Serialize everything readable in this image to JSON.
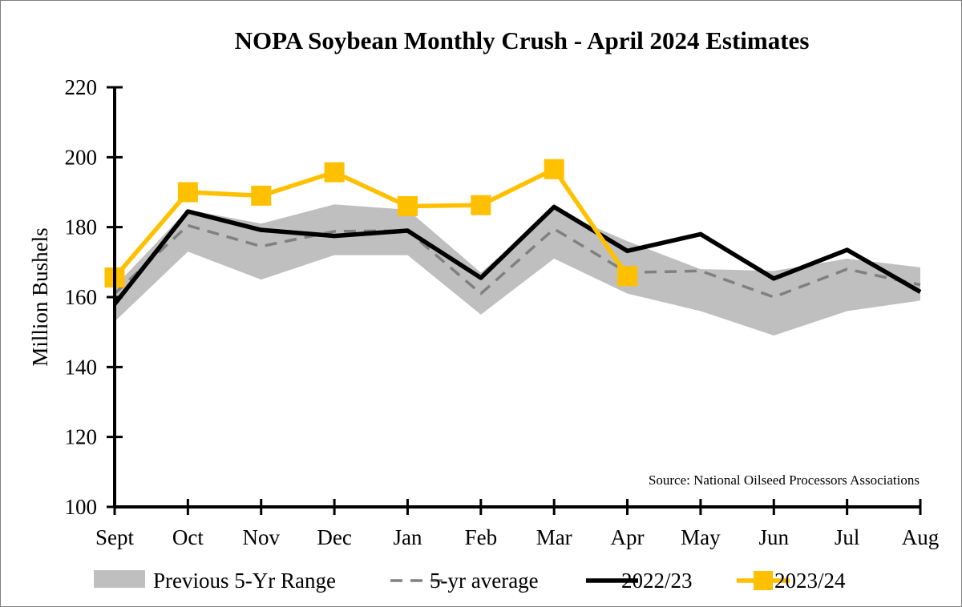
{
  "chart_data": {
    "type": "line",
    "title": "NOPA Soybean Monthly Crush - April 2024 Estimates",
    "xlabel": "",
    "ylabel": "Million Bushels",
    "ylim": [
      100,
      220
    ],
    "yticks": [
      100,
      120,
      140,
      160,
      180,
      200,
      220
    ],
    "categories": [
      "Sept",
      "Oct",
      "Nov",
      "Dec",
      "Jan",
      "Feb",
      "Mar",
      "Apr",
      "May",
      "Jun",
      "Jul",
      "Aug"
    ],
    "range": {
      "name": "Previous 5-Yr Range",
      "color": "#bfbfbf",
      "low": [
        153,
        173,
        165,
        172,
        172,
        155,
        171,
        161,
        156,
        149,
        156,
        159
      ],
      "high": [
        163,
        185,
        181,
        186.5,
        185,
        167,
        185,
        176,
        168,
        167.5,
        171,
        168.5
      ]
    },
    "series": [
      {
        "name": "5-yr average",
        "style": "dashed",
        "color": "#808080",
        "values": [
          161,
          180.5,
          174.5,
          178.8,
          179,
          161,
          179.5,
          167,
          167.5,
          160,
          168,
          163.5
        ]
      },
      {
        "name": "2022/23",
        "style": "solid",
        "color": "#000000",
        "values": [
          158,
          184.5,
          179.2,
          177.5,
          179,
          165.5,
          185.8,
          173.2,
          178,
          165.3,
          173.5,
          161.5
        ]
      },
      {
        "name": "2023/24",
        "style": "solid-markers",
        "color": "#ffc000",
        "values": [
          165.6,
          190,
          189,
          195.7,
          186,
          186.3,
          196.6,
          166,
          null,
          null,
          null,
          null
        ]
      }
    ],
    "legend_position": "bottom",
    "source_note": "Source: National Oilseed Processors Associations"
  }
}
